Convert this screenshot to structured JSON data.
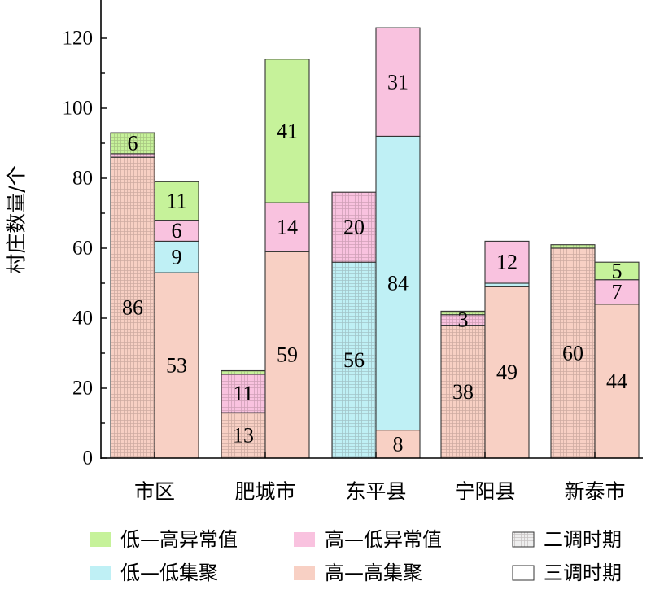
{
  "chart_data": {
    "type": "bar",
    "stacked": true,
    "title": "",
    "xlabel": "",
    "ylabel": "村庄数量/个",
    "ylim": [
      0,
      130
    ],
    "yticks": [
      0,
      20,
      40,
      60,
      80,
      100,
      120
    ],
    "grid": false,
    "categories": [
      "市区",
      "肥城市",
      "东平县",
      "宁阳县",
      "新泰市"
    ],
    "periods": [
      {
        "name": "二调时期",
        "pattern": "hatched"
      },
      {
        "name": "三调时期",
        "pattern": "plain"
      }
    ],
    "types": [
      {
        "key": "HH",
        "name": "高—高集聚",
        "color": "#f8d0c4"
      },
      {
        "key": "LL",
        "name": "低—低集聚",
        "color": "#bff0f5"
      },
      {
        "key": "HL",
        "name": "高—低异常值",
        "color": "#f9c2df"
      },
      {
        "key": "LH",
        "name": "低—高异常值",
        "color": "#c6f29a"
      }
    ],
    "stack_order": [
      "HH",
      "LL",
      "HL",
      "LH"
    ],
    "bars": [
      {
        "category": "市区",
        "period": "二调时期",
        "HH": 86,
        "LL": 0,
        "HL": 1,
        "LH": 6,
        "labels": [
          {
            "type": "HH",
            "text": "86"
          },
          {
            "type": "LH",
            "text": "6"
          }
        ]
      },
      {
        "category": "市区",
        "period": "三调时期",
        "HH": 53,
        "LL": 9,
        "HL": 6,
        "LH": 11,
        "labels": [
          {
            "type": "HH",
            "text": "53"
          },
          {
            "type": "LL",
            "text": "9"
          },
          {
            "type": "HL",
            "text": "6"
          },
          {
            "type": "LH",
            "text": "11"
          }
        ]
      },
      {
        "category": "肥城市",
        "period": "二调时期",
        "HH": 13,
        "LL": 0,
        "HL": 11,
        "LH": 1,
        "labels": [
          {
            "type": "HH",
            "text": "13"
          },
          {
            "type": "HL",
            "text": "11"
          }
        ]
      },
      {
        "category": "肥城市",
        "period": "三调时期",
        "HH": 59,
        "LL": 0,
        "HL": 14,
        "LH": 41,
        "labels": [
          {
            "type": "HH",
            "text": "59"
          },
          {
            "type": "HL",
            "text": "14"
          },
          {
            "type": "LH",
            "text": "41"
          }
        ]
      },
      {
        "category": "东平县",
        "period": "二调时期",
        "HH": 0,
        "LL": 56,
        "HL": 20,
        "LH": 0,
        "labels": [
          {
            "type": "LL",
            "text": "56"
          },
          {
            "type": "HL",
            "text": "20"
          }
        ]
      },
      {
        "category": "东平县",
        "period": "三调时期",
        "HH": 8,
        "LL": 84,
        "HL": 31,
        "LH": 0,
        "labels": [
          {
            "type": "HH",
            "text": "8"
          },
          {
            "type": "LL",
            "text": "84"
          },
          {
            "type": "HL",
            "text": "31"
          }
        ]
      },
      {
        "category": "宁阳县",
        "period": "二调时期",
        "HH": 38,
        "LL": 0,
        "HL": 3,
        "LH": 1,
        "labels": [
          {
            "type": "HH",
            "text": "38"
          },
          {
            "type": "HL",
            "text": "3"
          }
        ]
      },
      {
        "category": "宁阳县",
        "period": "三调时期",
        "HH": 49,
        "LL": 1,
        "HL": 12,
        "LH": 0,
        "labels": [
          {
            "type": "HH",
            "text": "49"
          },
          {
            "type": "HL",
            "text": "12"
          }
        ]
      },
      {
        "category": "新泰市",
        "period": "二调时期",
        "HH": 60,
        "LL": 0,
        "HL": 0,
        "LH": 1,
        "labels": [
          {
            "type": "HH",
            "text": "60"
          }
        ]
      },
      {
        "category": "新泰市",
        "period": "三调时期",
        "HH": 44,
        "LL": 0,
        "HL": 7,
        "LH": 5,
        "labels": [
          {
            "type": "HH",
            "text": "44"
          },
          {
            "type": "HL",
            "text": "7"
          },
          {
            "type": "LH",
            "text": "5"
          }
        ]
      }
    ],
    "legend": {
      "placement": "bottom",
      "entries": [
        {
          "name": "低—高异常值",
          "swatch": "LH"
        },
        {
          "name": "高—低异常值",
          "swatch": "HL"
        },
        {
          "name": "二调时期",
          "swatch": "hatched"
        },
        {
          "name": "低—低集聚",
          "swatch": "LL"
        },
        {
          "name": "高—高集聚",
          "swatch": "HH"
        },
        {
          "name": "三调时期",
          "swatch": "plain"
        }
      ]
    }
  }
}
